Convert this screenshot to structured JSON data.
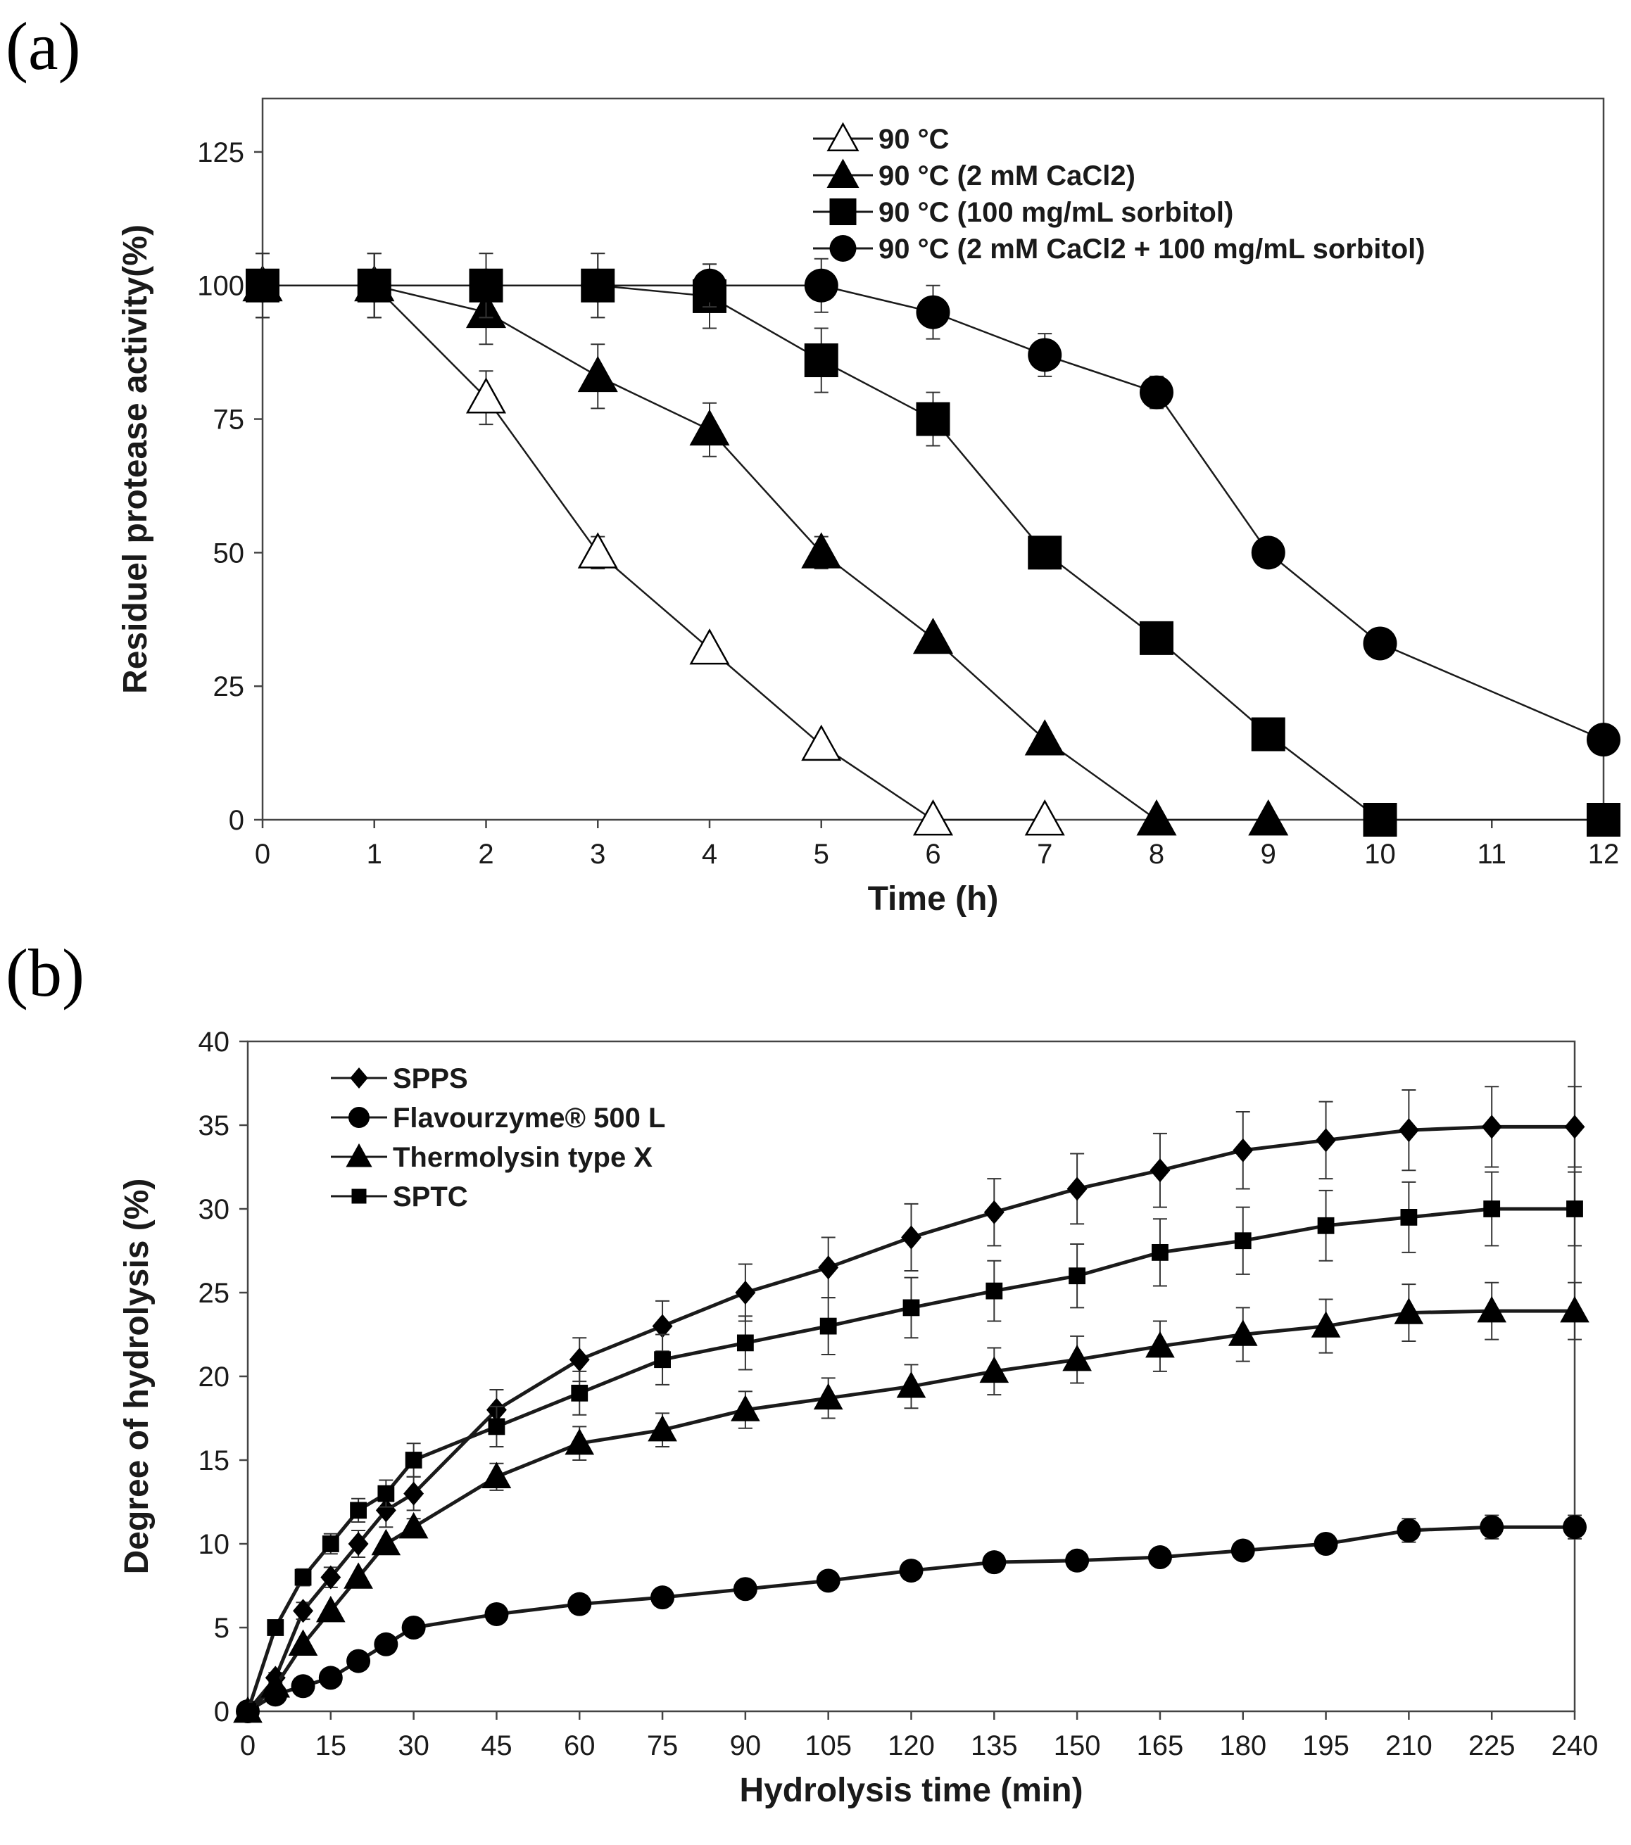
{
  "panels": {
    "a_label": "(a)",
    "b_label": "(b)"
  },
  "chart_data": [
    {
      "type": "line",
      "xlabel": "Time (h)",
      "ylabel": "Residuel protease activity(%)",
      "xlim": [
        0,
        12
      ],
      "ylim": [
        0,
        135
      ],
      "xticks": [
        0,
        1,
        2,
        3,
        4,
        5,
        6,
        7,
        8,
        9,
        10,
        11,
        12
      ],
      "yticks": [
        0,
        25,
        50,
        75,
        100,
        125
      ],
      "legend_position": "top-right",
      "series": [
        {
          "name": "90 °C",
          "marker": "triangle-open",
          "x": [
            0,
            1,
            2,
            3,
            4,
            5,
            6,
            7
          ],
          "y": [
            100,
            100,
            79,
            50,
            32,
            14,
            0,
            0
          ],
          "err": [
            6,
            6,
            5,
            3,
            0,
            0,
            0,
            0
          ]
        },
        {
          "name": "90 °C (2 mM CaCl2)",
          "marker": "triangle",
          "x": [
            0,
            1,
            2,
            3,
            4,
            5,
            6,
            7,
            8,
            9
          ],
          "y": [
            100,
            100,
            95,
            83,
            73,
            50,
            34,
            15,
            0,
            0
          ],
          "err": [
            6,
            6,
            6,
            6,
            5,
            3,
            0,
            0,
            0,
            0
          ]
        },
        {
          "name": "90 °C (100 mg/mL sorbitol)",
          "marker": "square",
          "x": [
            0,
            1,
            2,
            3,
            4,
            5,
            6,
            7,
            8,
            9,
            10,
            12
          ],
          "y": [
            100,
            100,
            100,
            100,
            98,
            86,
            75,
            50,
            34,
            16,
            0,
            0
          ],
          "err": [
            6,
            6,
            6,
            6,
            6,
            6,
            5,
            3,
            0,
            0,
            0,
            0
          ]
        },
        {
          "name": "90 °C (2 mM CaCl2 + 100 mg/mL sorbitol)",
          "marker": "circle",
          "x": [
            0,
            1,
            2,
            3,
            4,
            5,
            6,
            7,
            8,
            9,
            10,
            12
          ],
          "y": [
            100,
            100,
            100,
            100,
            100,
            100,
            95,
            87,
            80,
            50,
            33,
            15
          ],
          "err": [
            6,
            6,
            6,
            6,
            4,
            5,
            5,
            4,
            3,
            0,
            0,
            0
          ]
        }
      ]
    },
    {
      "type": "line",
      "xlabel": "Hydrolysis time (min)",
      "ylabel": "Degree of hydrolysis (%)",
      "xlim": [
        0,
        240
      ],
      "ylim": [
        0,
        40
      ],
      "xticks": [
        0,
        15,
        30,
        45,
        60,
        75,
        90,
        105,
        120,
        135,
        150,
        165,
        180,
        195,
        210,
        225,
        240
      ],
      "yticks": [
        0,
        5,
        10,
        15,
        20,
        25,
        30,
        35,
        40
      ],
      "legend_position": "top-left",
      "series": [
        {
          "name": "SPPS",
          "marker": "diamond",
          "x": [
            0,
            5,
            10,
            15,
            20,
            25,
            30,
            45,
            60,
            75,
            90,
            105,
            120,
            135,
            150,
            165,
            180,
            195,
            210,
            225,
            240
          ],
          "y": [
            0,
            2,
            6,
            8,
            10,
            12,
            13,
            18,
            21,
            23,
            25,
            26.5,
            28.3,
            29.8,
            31.2,
            32.3,
            33.5,
            34.1,
            34.7,
            34.9,
            34.9
          ],
          "err": [
            0,
            0.3,
            0.5,
            0.6,
            0.8,
            1,
            1,
            1.2,
            1.3,
            1.5,
            1.7,
            1.8,
            2,
            2,
            2.1,
            2.2,
            2.3,
            2.3,
            2.4,
            2.4,
            2.4
          ]
        },
        {
          "name": "Flavourzyme® 500 L",
          "marker": "circle",
          "x": [
            0,
            5,
            10,
            15,
            20,
            25,
            30,
            45,
            60,
            75,
            90,
            105,
            120,
            135,
            150,
            165,
            180,
            195,
            210,
            225,
            240
          ],
          "y": [
            0,
            1,
            1.5,
            2,
            3,
            4,
            5,
            5.8,
            6.4,
            6.8,
            7.3,
            7.8,
            8.4,
            8.9,
            9,
            9.2,
            9.6,
            10,
            10.8,
            11,
            11
          ],
          "err": [
            0,
            0,
            0,
            0,
            0,
            0,
            0,
            0,
            0,
            0,
            0,
            0,
            0,
            0,
            0,
            0,
            0,
            0,
            0.7,
            0.7,
            0.7
          ]
        },
        {
          "name": "Thermolysin type X",
          "marker": "triangle",
          "x": [
            0,
            5,
            10,
            15,
            20,
            25,
            30,
            45,
            60,
            75,
            90,
            105,
            120,
            135,
            150,
            165,
            180,
            195,
            210,
            225,
            240
          ],
          "y": [
            0,
            1.5,
            4,
            6,
            8,
            10,
            11,
            14,
            16,
            16.8,
            18,
            18.7,
            19.4,
            20.3,
            21,
            21.8,
            22.5,
            23,
            23.8,
            23.9,
            23.9
          ],
          "err": [
            0,
            0,
            0,
            0,
            0,
            0,
            0.5,
            0.8,
            1,
            1,
            1.1,
            1.2,
            1.3,
            1.4,
            1.4,
            1.5,
            1.6,
            1.6,
            1.7,
            1.7,
            1.7
          ]
        },
        {
          "name": "SPTC",
          "marker": "square-small",
          "x": [
            0,
            5,
            10,
            15,
            20,
            25,
            30,
            45,
            60,
            75,
            90,
            105,
            120,
            135,
            150,
            165,
            180,
            195,
            210,
            225,
            240
          ],
          "y": [
            0,
            5,
            8,
            10,
            12,
            13,
            15,
            17,
            19,
            21,
            22,
            23,
            24.1,
            25.1,
            26,
            27.4,
            28.1,
            29,
            29.5,
            30,
            30
          ],
          "err": [
            0,
            0,
            0.5,
            0.6,
            0.7,
            0.8,
            1,
            1.2,
            1.3,
            1.5,
            1.6,
            1.7,
            1.8,
            1.8,
            1.9,
            2,
            2,
            2.1,
            2.1,
            2.2,
            2.2
          ]
        }
      ]
    }
  ]
}
